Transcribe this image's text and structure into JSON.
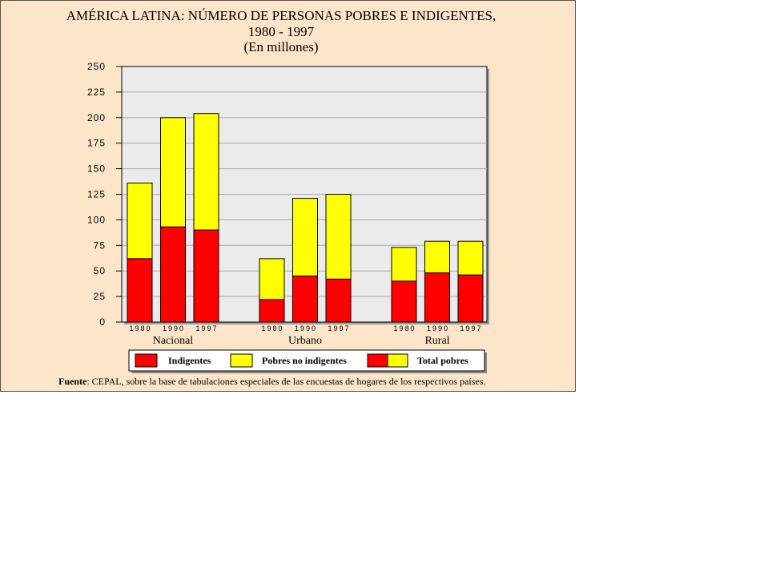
{
  "title_line1": "AMÉRICA LATINA: NÚMERO DE PERSONAS POBRES E INDIGENTES,",
  "title_line2": "1980 - 1997",
  "title_line3": "(En millones)",
  "source_label": "Fuente",
  "source_text": ": CEPAL, sobre la base de tabulaciones especiales de las encuestas de hogares de los respectivos países.",
  "colors": {
    "indigentes": "#ff0000",
    "pobres_no_indigentes": "#ffff00",
    "plot_bg": "#ebebeb",
    "panel_bg": "#fde5c9"
  },
  "chart_data": {
    "type": "bar",
    "stacked": true,
    "ylim": [
      0,
      250
    ],
    "yticks": [
      0,
      25,
      50,
      75,
      100,
      125,
      150,
      175,
      200,
      225,
      250
    ],
    "grid": true,
    "legend_position": "bottom",
    "groups": [
      {
        "label": "Nacional",
        "categories": [
          "1980",
          "1990",
          "1997"
        ]
      },
      {
        "label": "Urbano",
        "categories": [
          "1980",
          "1990",
          "1997"
        ]
      },
      {
        "label": "Rural",
        "categories": [
          "1980",
          "1990",
          "1997"
        ]
      }
    ],
    "series": [
      {
        "name": "Indigentes",
        "color": "#ff0000",
        "values": [
          62,
          93,
          90,
          22,
          45,
          42,
          40,
          48,
          46
        ]
      },
      {
        "name": "Pobres no indigentes",
        "color": "#ffff00",
        "values": [
          74,
          107,
          114,
          40,
          76,
          83,
          33,
          31,
          33
        ]
      }
    ],
    "legend": [
      "Indigentes",
      "Pobres no indigentes",
      "Total pobres"
    ]
  }
}
